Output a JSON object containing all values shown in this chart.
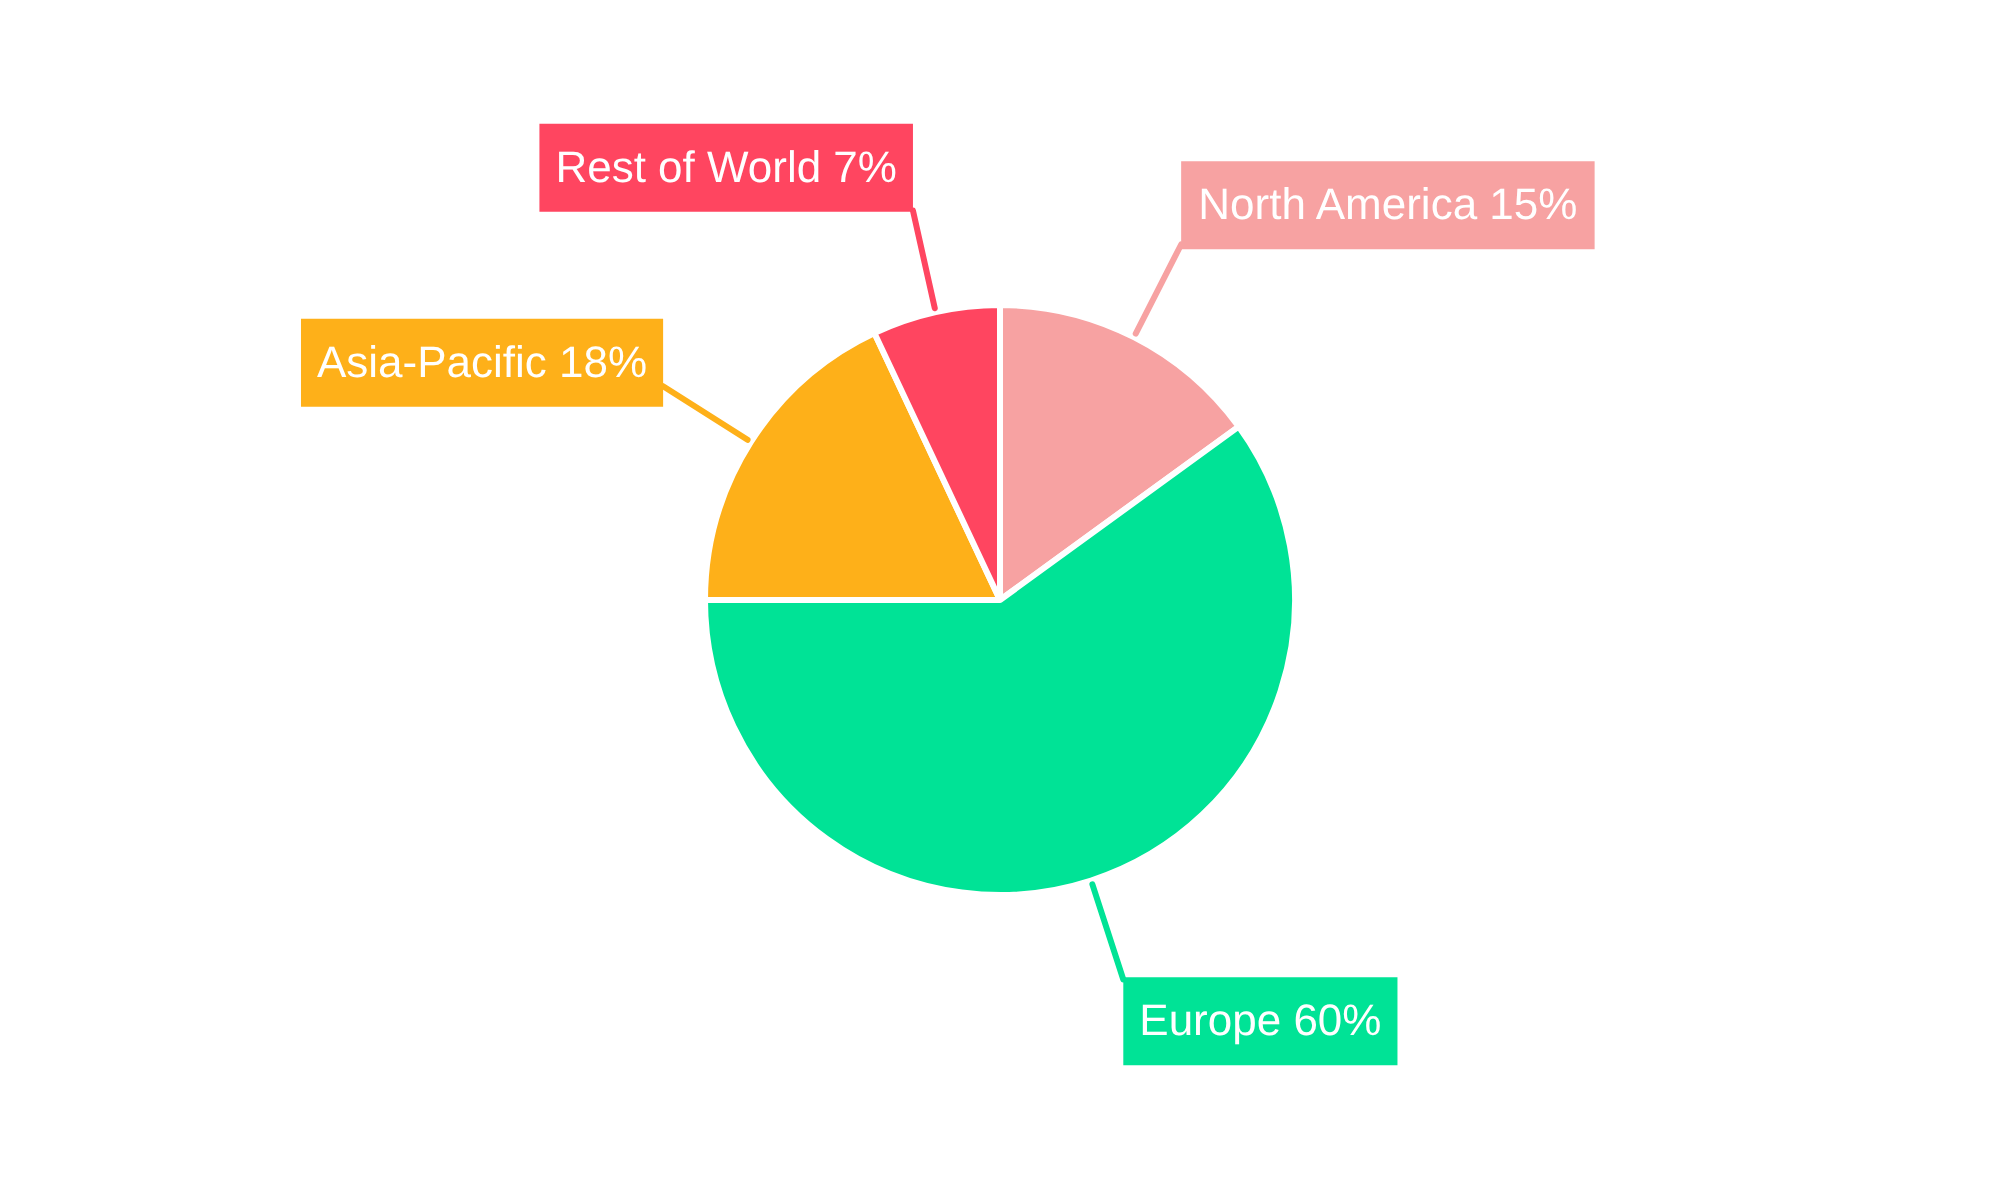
{
  "chart_data": {
    "type": "pie",
    "categories": [
      "North America",
      "Europe",
      "Asia-Pacific",
      "Rest of World"
    ],
    "values": [
      15,
      60,
      18,
      7
    ],
    "colors": [
      "#f7a2a2",
      "#00e396",
      "#feb019",
      "#ff4560"
    ],
    "value_labels": [
      "15%",
      "60%",
      "18%",
      "7%"
    ],
    "legend": false
  }
}
